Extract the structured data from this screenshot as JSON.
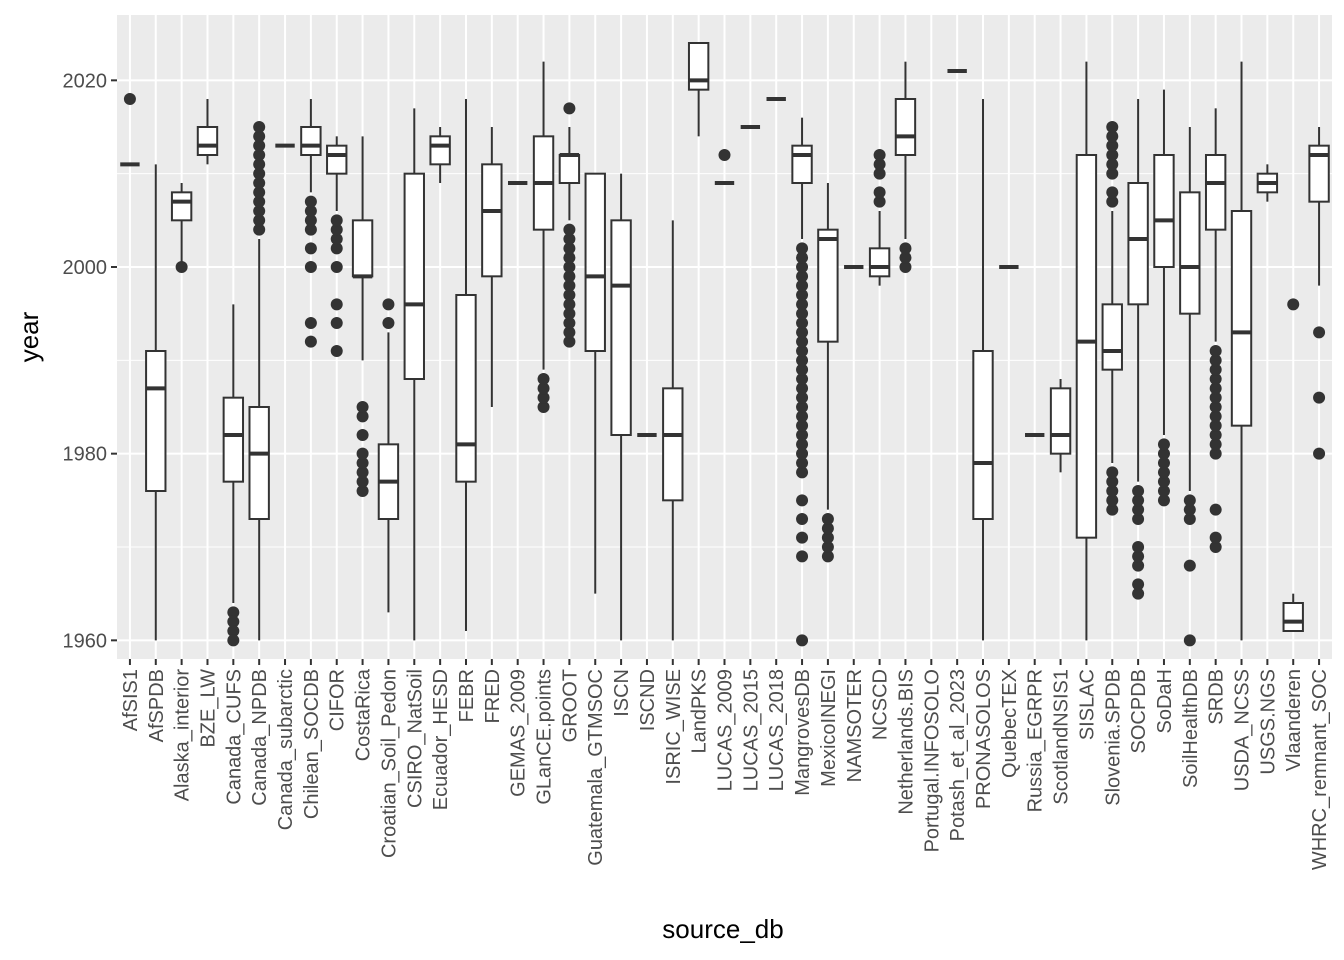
{
  "chart_data": {
    "type": "box",
    "xlabel": "source_db",
    "ylabel": "year",
    "ylim": [
      1958,
      2027
    ],
    "y_ticks": [
      1960,
      1980,
      2000,
      2020
    ],
    "grid": true,
    "panel_background": "#ebebeb",
    "grid_color": "#ffffff",
    "box_stroke": "#333333",
    "box_fill": "#ffffff",
    "categories": [
      "AfSIS1",
      "AfSPDB",
      "Alaska_interior",
      "BZE_LW",
      "Canada_CUFS",
      "Canada_NPDB",
      "Canada_subarctic",
      "Chilean_SOCDB",
      "CIFOR",
      "CostaRica",
      "Croatian_Soil_Pedon",
      "CSIRO_NatSoil",
      "Ecuador_HESD",
      "FEBR",
      "FRED",
      "GEMAS_2009",
      "GLanCE.points",
      "GROOT",
      "Guatemala_GTMSOC",
      "ISCN",
      "ISCND",
      "ISRIC_WISE",
      "LandPKS",
      "LUCAS_2009",
      "LUCAS_2015",
      "LUCAS_2018",
      "MangrovesDB",
      "MexicoINEGI",
      "NAMSOTER",
      "NCSCD",
      "Netherlands.BIS",
      "Portugal.INFOSOLO",
      "Potash_et_al_2023",
      "PRONASOLOS",
      "QuebecTEX",
      "Russia_EGRPR",
      "ScotlandNSIS1",
      "SISLAC",
      "Slovenia.SPDB",
      "SOCPDB",
      "SoDaH",
      "SoilHealthDB",
      "SRDB",
      "USDA_NCSS",
      "USGS.NGS",
      "Vlaanderen",
      "WHRC_remnant_SOC"
    ],
    "boxes": [
      {
        "min": 2011,
        "q1": 2011,
        "median": 2011,
        "q3": 2011,
        "max": 2011,
        "outliers": [
          2018
        ]
      },
      {
        "min": 1960,
        "q1": 1976,
        "median": 1987,
        "q3": 1991,
        "max": 2011,
        "outliers": []
      },
      {
        "min": 2000,
        "q1": 2005,
        "median": 2007,
        "q3": 2008,
        "max": 2009,
        "outliers": [
          2000
        ]
      },
      {
        "min": 2011,
        "q1": 2012,
        "median": 2013,
        "q3": 2015,
        "max": 2018,
        "outliers": []
      },
      {
        "min": 1964,
        "q1": 1977,
        "median": 1982,
        "q3": 1986,
        "max": 1996,
        "outliers": [
          1963,
          1962,
          1961,
          1960
        ]
      },
      {
        "min": 1960,
        "q1": 1973,
        "median": 1980,
        "q3": 1985,
        "max": 2003,
        "outliers": [
          2004,
          2005,
          2006,
          2007,
          2008,
          2009,
          2010,
          2011,
          2012,
          2013,
          2014,
          2015
        ]
      },
      {
        "min": 2013,
        "q1": 2013,
        "median": 2013,
        "q3": 2013,
        "max": 2013,
        "outliers": []
      },
      {
        "min": 2008,
        "q1": 2012,
        "median": 2013,
        "q3": 2015,
        "max": 2018,
        "outliers": [
          1992,
          1994,
          2000,
          2002,
          2004,
          2005,
          2006,
          2007
        ]
      },
      {
        "min": 2006,
        "q1": 2010,
        "median": 2012,
        "q3": 2013,
        "max": 2014,
        "outliers": [
          1991,
          1994,
          1996,
          2000,
          2002,
          2003,
          2004,
          2005
        ]
      },
      {
        "min": 1990,
        "q1": 1999,
        "median": 1999,
        "q3": 2005,
        "max": 2014,
        "outliers": [
          1976,
          1977,
          1978,
          1979,
          1980,
          1982,
          1984,
          1985
        ]
      },
      {
        "min": 1963,
        "q1": 1973,
        "median": 1977,
        "q3": 1981,
        "max": 1993,
        "outliers": [
          1994,
          1996
        ]
      },
      {
        "min": 1960,
        "q1": 1988,
        "median": 1996,
        "q3": 2010,
        "max": 2017,
        "outliers": []
      },
      {
        "min": 2009,
        "q1": 2011,
        "median": 2013,
        "q3": 2014,
        "max": 2015,
        "outliers": []
      },
      {
        "min": 1961,
        "q1": 1977,
        "median": 1981,
        "q3": 1997,
        "max": 2018,
        "outliers": []
      },
      {
        "min": 1985,
        "q1": 1999,
        "median": 2006,
        "q3": 2011,
        "max": 2015,
        "outliers": []
      },
      {
        "min": 2009,
        "q1": 2009,
        "median": 2009,
        "q3": 2009,
        "max": 2009,
        "outliers": []
      },
      {
        "min": 1989,
        "q1": 2004,
        "median": 2009,
        "q3": 2014,
        "max": 2022,
        "outliers": [
          1985,
          1986,
          1987,
          1988
        ]
      },
      {
        "min": 2005,
        "q1": 2009,
        "median": 2012,
        "q3": 2012,
        "max": 2015,
        "outliers": [
          1992,
          1993,
          1994,
          1995,
          1996,
          1997,
          1998,
          1999,
          2000,
          2001,
          2002,
          2003,
          2004,
          2017
        ]
      },
      {
        "min": 1965,
        "q1": 1991,
        "median": 1999,
        "q3": 2010,
        "max": 2010,
        "outliers": []
      },
      {
        "min": 1960,
        "q1": 1982,
        "median": 1998,
        "q3": 2005,
        "max": 2010,
        "outliers": []
      },
      {
        "min": 1982,
        "q1": 1982,
        "median": 1982,
        "q3": 1982,
        "max": 1982,
        "outliers": []
      },
      {
        "min": 1960,
        "q1": 1975,
        "median": 1982,
        "q3": 1987,
        "max": 2005,
        "outliers": []
      },
      {
        "min": 2014,
        "q1": 2019,
        "median": 2020,
        "q3": 2024,
        "max": 2024,
        "outliers": []
      },
      {
        "min": 2009,
        "q1": 2009,
        "median": 2009,
        "q3": 2009,
        "max": 2009,
        "outliers": [
          2012
        ]
      },
      {
        "min": 2015,
        "q1": 2015,
        "median": 2015,
        "q3": 2015,
        "max": 2015,
        "outliers": []
      },
      {
        "min": 2018,
        "q1": 2018,
        "median": 2018,
        "q3": 2018,
        "max": 2018,
        "outliers": []
      },
      {
        "min": 2003,
        "q1": 2009,
        "median": 2012,
        "q3": 2013,
        "max": 2016,
        "outliers": [
          1960,
          1969,
          1971,
          1973,
          1975,
          1978,
          1979,
          1980,
          1981,
          1982,
          1983,
          1984,
          1985,
          1986,
          1987,
          1988,
          1989,
          1990,
          1991,
          1992,
          1993,
          1994,
          1995,
          1996,
          1997,
          1998,
          1999,
          2000,
          2001,
          2002
        ]
      },
      {
        "min": 1974,
        "q1": 1992,
        "median": 2003,
        "q3": 2004,
        "max": 2009,
        "outliers": [
          1969,
          1970,
          1971,
          1972,
          1973
        ]
      },
      {
        "min": 2000,
        "q1": 2000,
        "median": 2000,
        "q3": 2000,
        "max": 2000,
        "outliers": []
      },
      {
        "min": 1998,
        "q1": 1999,
        "median": 2000,
        "q3": 2002,
        "max": 2006,
        "outliers": [
          2007,
          2008,
          2010,
          2011,
          2012
        ]
      },
      {
        "min": 2003,
        "q1": 2012,
        "median": 2014,
        "q3": 2018,
        "max": 2022,
        "outliers": [
          2000,
          2001,
          2002
        ]
      },
      {
        "min": null,
        "q1": null,
        "median": null,
        "q3": null,
        "max": null,
        "outliers": []
      },
      {
        "min": 2021,
        "q1": 2021,
        "median": 2021,
        "q3": 2021,
        "max": 2021,
        "outliers": []
      },
      {
        "min": 1960,
        "q1": 1973,
        "median": 1979,
        "q3": 1991,
        "max": 2018,
        "outliers": []
      },
      {
        "min": 2000,
        "q1": 2000,
        "median": 2000,
        "q3": 2000,
        "max": 2000,
        "outliers": []
      },
      {
        "min": 1982,
        "q1": 1982,
        "median": 1982,
        "q3": 1982,
        "max": 1982,
        "outliers": []
      },
      {
        "min": 1978,
        "q1": 1980,
        "median": 1982,
        "q3": 1987,
        "max": 1988,
        "outliers": []
      },
      {
        "min": 1960,
        "q1": 1971,
        "median": 1992,
        "q3": 2012,
        "max": 2022,
        "outliers": []
      },
      {
        "min": 1979,
        "q1": 1989,
        "median": 1991,
        "q3": 1996,
        "max": 2006,
        "outliers": [
          1974,
          1975,
          1976,
          1977,
          1978,
          2007,
          2008,
          2010,
          2011,
          2012,
          2013,
          2014,
          2015
        ]
      },
      {
        "min": 1977,
        "q1": 1996,
        "median": 2003,
        "q3": 2009,
        "max": 2018,
        "outliers": [
          1965,
          1966,
          1968,
          1969,
          1970,
          1973,
          1974,
          1975,
          1976
        ]
      },
      {
        "min": 1982,
        "q1": 2000,
        "median": 2005,
        "q3": 2012,
        "max": 2019,
        "outliers": [
          1975,
          1976,
          1977,
          1978,
          1979,
          1980,
          1981
        ]
      },
      {
        "min": 1976,
        "q1": 1995,
        "median": 2000,
        "q3": 2008,
        "max": 2015,
        "outliers": [
          1960,
          1968,
          1973,
          1974,
          1975
        ]
      },
      {
        "min": 1992,
        "q1": 2004,
        "median": 2009,
        "q3": 2012,
        "max": 2017,
        "outliers": [
          1970,
          1971,
          1974,
          1980,
          1981,
          1982,
          1983,
          1984,
          1985,
          1986,
          1987,
          1988,
          1989,
          1990,
          1991
        ]
      },
      {
        "min": 1960,
        "q1": 1983,
        "median": 1993,
        "q3": 2006,
        "max": 2022,
        "outliers": []
      },
      {
        "min": 2007,
        "q1": 2008,
        "median": 2009,
        "q3": 2010,
        "max": 2011,
        "outliers": []
      },
      {
        "min": 1961,
        "q1": 1961,
        "median": 1962,
        "q3": 1964,
        "max": 1965,
        "outliers": [
          1996
        ]
      },
      {
        "min": 1998,
        "q1": 2007,
        "median": 2012,
        "q3": 2013,
        "max": 2015,
        "outliers": [
          1980,
          1986,
          1993
        ]
      }
    ]
  }
}
